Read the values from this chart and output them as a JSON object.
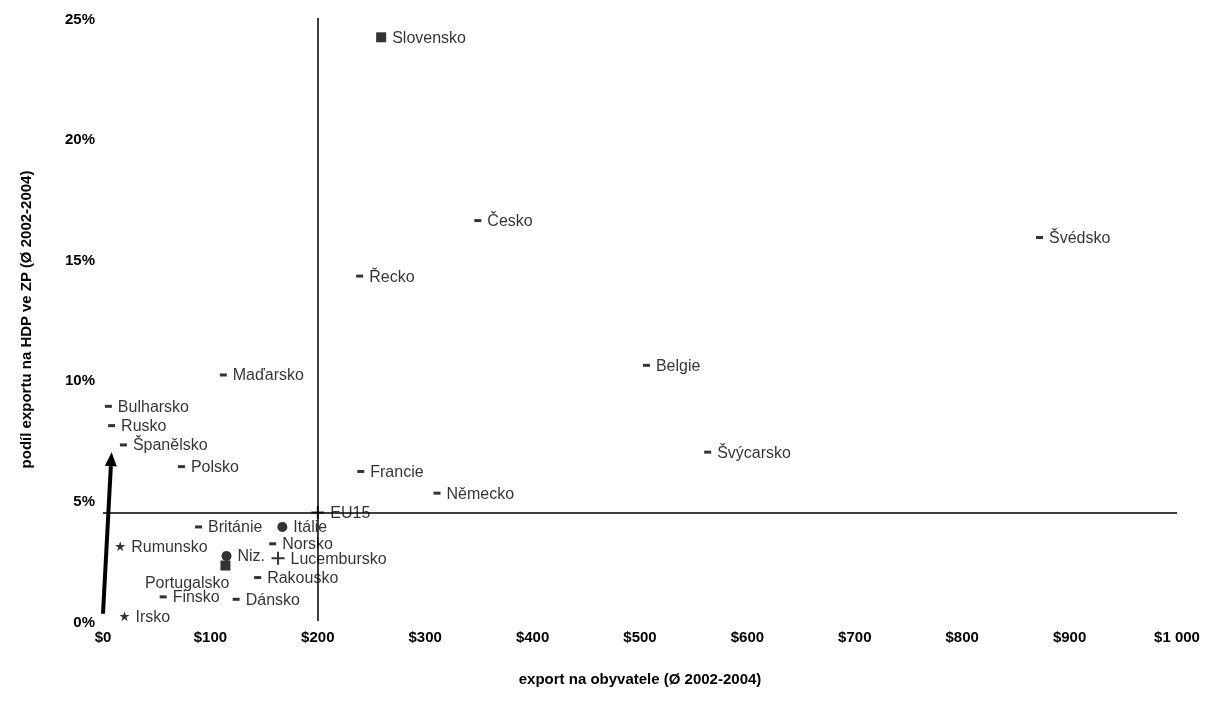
{
  "chart_data": {
    "type": "scatter",
    "xlabel": "export na obyvatele (Ø 2002-2004)",
    "ylabel": "podíl exportu na HDP ve ZP (Ø 2002-2004)",
    "xlim": [
      0,
      1000
    ],
    "ylim": [
      0,
      25
    ],
    "xticks": [
      {
        "value": 0,
        "label": "$0"
      },
      {
        "value": 100,
        "label": "$100"
      },
      {
        "value": 200,
        "label": "$200"
      },
      {
        "value": 300,
        "label": "$300"
      },
      {
        "value": 400,
        "label": "$400"
      },
      {
        "value": 500,
        "label": "$500"
      },
      {
        "value": 600,
        "label": "$600"
      },
      {
        "value": 700,
        "label": "$700"
      },
      {
        "value": 800,
        "label": "$800"
      },
      {
        "value": 900,
        "label": "$900"
      },
      {
        "value": 1000,
        "label": "$1 000"
      }
    ],
    "yticks": [
      {
        "value": 0,
        "label": "0%"
      },
      {
        "value": 5,
        "label": "5%"
      },
      {
        "value": 10,
        "label": "10%"
      },
      {
        "value": 15,
        "label": "15%"
      },
      {
        "value": 20,
        "label": "20%"
      },
      {
        "value": 25,
        "label": "25%"
      }
    ],
    "grid": false,
    "legend": false,
    "ref_lines": [
      {
        "axis": "x",
        "value": 200,
        "color": "#000000"
      },
      {
        "axis": "y",
        "value": 4.5,
        "color": "#000000"
      }
    ],
    "series": [
      {
        "name": "Slovensko",
        "color": "#000000",
        "marker": "square",
        "x": [
          259
        ],
        "values": [
          24.2
        ]
      },
      {
        "name": "Česko",
        "color": "#000000",
        "x": [
          349
        ],
        "values": [
          16.6
        ]
      },
      {
        "name": "Švédsko",
        "color": "#000000",
        "x": [
          872
        ],
        "values": [
          15.9
        ]
      },
      {
        "name": "Řecko",
        "color": "#000000",
        "x": [
          239
        ],
        "values": [
          14.3
        ]
      },
      {
        "name": "Belgie",
        "color": "#000000",
        "x": [
          506
        ],
        "values": [
          10.6
        ]
      },
      {
        "name": "Maďarsko",
        "color": "#000000",
        "x": [
          112
        ],
        "values": [
          10.2
        ]
      },
      {
        "name": "Bulharsko",
        "color": "#000000",
        "x": [
          5
        ],
        "values": [
          8.9
        ]
      },
      {
        "name": "Rusko",
        "color": "#000000",
        "x": [
          8
        ],
        "values": [
          8.1
        ]
      },
      {
        "name": "Španělsko",
        "color": "#000000",
        "x": [
          19
        ],
        "values": [
          7.3
        ]
      },
      {
        "name": "Švýcarsko",
        "color": "#000000",
        "x": [
          563
        ],
        "values": [
          7.0
        ]
      },
      {
        "name": "Polsko",
        "color": "#000000",
        "x": [
          73
        ],
        "values": [
          6.4
        ]
      },
      {
        "name": "Francie",
        "color": "#000000",
        "x": [
          240
        ],
        "values": [
          6.2
        ]
      },
      {
        "name": "Německo",
        "color": "#000000",
        "x": [
          311
        ],
        "values": [
          5.3
        ]
      },
      {
        "name": "EU15",
        "color": "#000000",
        "marker": "cross",
        "x": [
          200
        ],
        "values": [
          4.5
        ]
      },
      {
        "name": "Británie",
        "color": "#000000",
        "x": [
          89
        ],
        "values": [
          3.9
        ]
      },
      {
        "name": "Itálie",
        "color": "#000000",
        "marker": "circle",
        "x": [
          167
        ],
        "values": [
          3.9
        ]
      },
      {
        "name": "Niz.",
        "color": "#000000",
        "marker": "circle",
        "x": [
          115
        ],
        "values": [
          2.7
        ]
      },
      {
        "name": "Norsko",
        "color": "#000000",
        "x": [
          158
        ],
        "values": [
          3.2
        ]
      },
      {
        "name": "Rumunsko",
        "color": "#000000",
        "marker": "star",
        "x": [
          16
        ],
        "values": [
          3.1
        ]
      },
      {
        "name": "Lucembursko",
        "color": "#000000",
        "marker": "cross",
        "x": [
          163
        ],
        "values": [
          2.6
        ]
      },
      {
        "name": "Portugalsko",
        "color": "#000000",
        "marker": "square",
        "x": [
          114
        ],
        "values": [
          2.3
        ]
      },
      {
        "name": "Rakousko",
        "color": "#000000",
        "x": [
          144
        ],
        "values": [
          1.8
        ]
      },
      {
        "name": "Finsko",
        "color": "#000000",
        "x": [
          56
        ],
        "values": [
          1.0
        ]
      },
      {
        "name": "Dánsko",
        "color": "#000000",
        "x": [
          124
        ],
        "values": [
          0.9
        ]
      },
      {
        "name": "Irsko",
        "color": "#000000",
        "marker": "star",
        "x": [
          20
        ],
        "values": [
          0.2
        ]
      }
    ]
  }
}
